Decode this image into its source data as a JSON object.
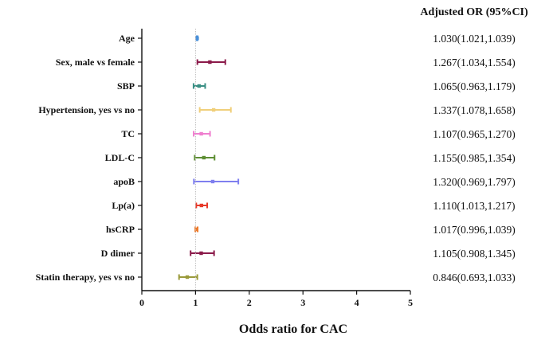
{
  "chart_data": {
    "type": "forest",
    "column_header": "Adjusted OR (95%CI)",
    "xlabel": "Odds ratio for CAC",
    "xlim": [
      0,
      5
    ],
    "xticks": [
      "0",
      "1",
      "2",
      "3",
      "4",
      "5"
    ],
    "reference_line": 1,
    "rows": [
      {
        "label": "Age",
        "or": 1.03,
        "lo": 1.021,
        "hi": 1.039,
        "text": "1.030(1.021,1.039)",
        "color": "#4a90d9"
      },
      {
        "label": "Sex, male vs female",
        "or": 1.267,
        "lo": 1.034,
        "hi": 1.554,
        "text": "1.267(1.034,1.554)",
        "color": "#8b1a4a"
      },
      {
        "label": "SBP",
        "or": 1.065,
        "lo": 0.963,
        "hi": 1.179,
        "text": "1.065(0.963,1.179)",
        "color": "#3a8f84"
      },
      {
        "label": "Hypertension, yes vs no",
        "or": 1.337,
        "lo": 1.078,
        "hi": 1.658,
        "text": "1.337(1.078,1.658)",
        "color": "#f0cf7a"
      },
      {
        "label": "TC",
        "or": 1.107,
        "lo": 0.965,
        "hi": 1.27,
        "text": "1.107(0.965,1.270)",
        "color": "#ef7fcf"
      },
      {
        "label": "LDL-C",
        "or": 1.155,
        "lo": 0.985,
        "hi": 1.354,
        "text": "1.155(0.985,1.354)",
        "color": "#5e8f34"
      },
      {
        "label": "apoB",
        "or": 1.32,
        "lo": 0.969,
        "hi": 1.797,
        "text": "1.320(0.969,1.797)",
        "color": "#7f7fef"
      },
      {
        "label": "Lp(a)",
        "or": 1.11,
        "lo": 1.013,
        "hi": 1.217,
        "text": "1.110(1.013,1.217)",
        "color": "#e83a2a"
      },
      {
        "label": "hsCRP",
        "or": 1.017,
        "lo": 0.996,
        "hi": 1.039,
        "text": "1.017(0.996,1.039)",
        "color": "#ef7a2a"
      },
      {
        "label": "D dimer",
        "or": 1.105,
        "lo": 0.908,
        "hi": 1.345,
        "text": "1.105(0.908,1.345)",
        "color": "#8b1a4a"
      },
      {
        "label": "Statin therapy, yes vs no",
        "or": 0.846,
        "lo": 0.693,
        "hi": 1.033,
        "text": "0.846(0.693,1.033)",
        "color": "#9a9a3a"
      }
    ]
  }
}
